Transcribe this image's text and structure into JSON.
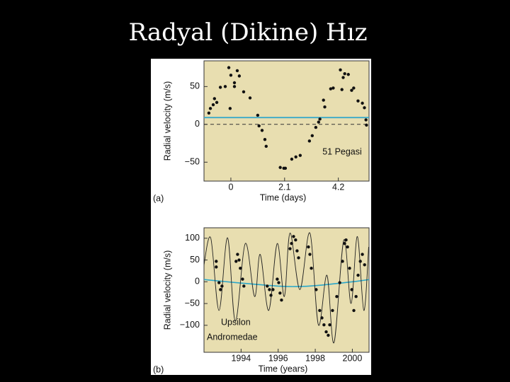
{
  "slide": {
    "title": "Radyal (Dikine) Hız"
  },
  "chart_data": [
    {
      "type": "scatter",
      "panel_label": "(a)",
      "xlabel": "Time (days)",
      "ylabel": "Radial velocity (m/s)",
      "annotation": [
        "51 Pegasi"
      ],
      "xlim": [
        -1.05,
        5.4
      ],
      "ylim": [
        -75,
        84
      ],
      "xticks": [
        0,
        2.1,
        4.2
      ],
      "yticks": [
        {
          "value": -50,
          "label": "−50"
        },
        0,
        50
      ],
      "reference_lines": [
        {
          "value": 9,
          "color": "#3aa9c8",
          "style": "solid"
        },
        {
          "value": 0,
          "color": "#333333",
          "style": "dashed"
        }
      ],
      "series": [
        {
          "mode": "markers",
          "color": "#111111",
          "x": [
            -0.86,
            -0.8,
            -0.69,
            -0.64,
            -0.55,
            -0.41,
            -0.22,
            -0.08,
            0,
            -0.03,
            0.14,
            0.14,
            0.25,
            0.33,
            0.5,
            0.75,
            1.05,
            1.1,
            1.22,
            1.33,
            1.38,
            1.93,
            2.07,
            2.13,
            2.38,
            2.54,
            2.71,
            3.07,
            3.18,
            3.32,
            3.43,
            3.48,
            3.62,
            3.67,
            3.9,
            4.0,
            4.28,
            4.34,
            4.39,
            4.45,
            4.59,
            4.72,
            4.8,
            4.97,
            5.14,
            5.22,
            5.28,
            5.3
          ],
          "values": [
            15,
            21,
            26,
            34,
            29,
            49,
            50,
            75,
            65,
            21,
            55,
            50,
            71,
            64,
            43,
            35,
            12,
            -2,
            -8,
            -20,
            -29,
            -57,
            -58,
            -58,
            -46,
            -43,
            -41,
            -22,
            -15,
            -4,
            3,
            7,
            32,
            23,
            47,
            48,
            72,
            46,
            62,
            67,
            66,
            45,
            48,
            31,
            28,
            22,
            6,
            -1
          ]
        }
      ]
    },
    {
      "type": "scatter",
      "panel_label": "(b)",
      "xlabel": "Time (years)",
      "ylabel": "Radial velocity (m/s)",
      "annotation": [
        "Upsilon",
        "Andromedae"
      ],
      "xlim": [
        1992,
        2000.9
      ],
      "ylim": [
        -162,
        124
      ],
      "xticks": [
        1994,
        1996,
        1998,
        2000
      ],
      "yticks": [
        {
          "value": -100,
          "label": "−100"
        },
        {
          "value": -50,
          "label": "−50"
        },
        0,
        50,
        100
      ],
      "reference_lines": [],
      "series": [
        {
          "mode": "line",
          "color": "#2aa7c9",
          "x": [
            1992,
            1994,
            1996,
            1997,
            1998,
            2000,
            2000.9
          ],
          "values": [
            5,
            -3,
            -10,
            -11,
            -9,
            0,
            5
          ]
        },
        {
          "mode": "line",
          "color": "#222222",
          "x": [
            1991.97,
            1992.36,
            1992.81,
            1993.27,
            1993.69,
            1994.23,
            1994.73,
            1995.03,
            1995.49,
            1995.95,
            1996.33,
            1996.64,
            1997.17,
            1997.71,
            1998.17,
            1998.63,
            1999.01,
            1999.54,
            1999.93,
            2000.27,
            2000.62,
            2000.88
          ],
          "values": [
            31,
            101,
            -66,
            101,
            -91,
            88,
            -34,
            63,
            -66,
            88,
            -34,
            112,
            -18,
            112,
            -99,
            15,
            -140,
            96,
            -50,
            104,
            -66,
            80
          ]
        },
        {
          "mode": "markers",
          "color": "#111111",
          "x": [
            1992.66,
            1992.66,
            1992.81,
            1992.89,
            1992.97,
            1993.73,
            1993.81,
            1993.89,
            1993.96,
            1994.08,
            1994.15,
            1995.41,
            1995.53,
            1995.61,
            1995.72,
            1995.95,
            1996.03,
            1996.1,
            1996.18,
            1996.64,
            1996.72,
            1996.83,
            1996.94,
            1997.02,
            1997.1,
            1997.63,
            1997.71,
            1997.79,
            1998.05,
            1998.24,
            1998.36,
            1998.47,
            1998.59,
            1998.7,
            1998.78,
            1998.93,
            1999.16,
            1999.32,
            1999.47,
            1999.58,
            1999.66,
            1999.74,
            1999.85,
            1999.97,
            2000.08,
            2000.2,
            2000.31,
            2000.43,
            2000.54,
            2000.66
          ],
          "values": [
            47,
            34,
            -2,
            -18,
            -10,
            47,
            63,
            50,
            31,
            6,
            -10,
            -10,
            -18,
            -31,
            -18,
            6,
            -2,
            -26,
            -42,
            76,
            88,
            104,
            96,
            71,
            55,
            80,
            63,
            31,
            -18,
            -66,
            -83,
            -99,
            -115,
            -123,
            -99,
            -66,
            -34,
            -2,
            47,
            88,
            96,
            80,
            31,
            -18,
            -66,
            -34,
            15,
            47,
            63,
            39
          ]
        }
      ]
    }
  ]
}
